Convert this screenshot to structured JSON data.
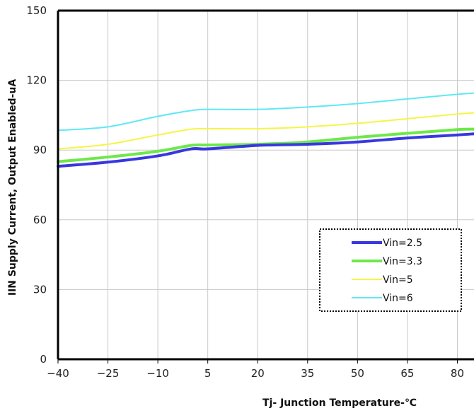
{
  "chart_data": {
    "type": "line",
    "title": "",
    "xlabel": "Tj- Junction Temperature-℃",
    "ylabel": "IIN Supply Current, Output Enabled-uA",
    "xlim": [
      -40,
      85
    ],
    "ylim": [
      0,
      150
    ],
    "x_ticks": [
      -40,
      -25,
      -10,
      5,
      20,
      35,
      50,
      65,
      80
    ],
    "y_ticks": [
      0,
      30,
      60,
      90,
      120,
      150
    ],
    "grid": true,
    "legend_position": "lower-right",
    "series": [
      {
        "name": "Vin=2.5",
        "color": "#3838e0",
        "x": [
          -40,
          -25,
          -10,
          0,
          5,
          20,
          35,
          50,
          65,
          80,
          85
        ],
        "values": [
          83,
          84.8,
          87.5,
          90.5,
          90.5,
          92,
          92.5,
          93.5,
          95.2,
          96.5,
          97
        ]
      },
      {
        "name": "Vin=3.3",
        "color": "#6ee84a",
        "x": [
          -40,
          -25,
          -10,
          0,
          5,
          20,
          35,
          50,
          65,
          80,
          85
        ],
        "values": [
          85,
          87,
          89.5,
          92,
          92.2,
          92.5,
          93.5,
          95.5,
          97.2,
          98.8,
          99
        ]
      },
      {
        "name": "Vin=5",
        "color": "#f5f545",
        "x": [
          -40,
          -25,
          -10,
          0,
          5,
          20,
          35,
          50,
          65,
          80,
          85
        ],
        "values": [
          90.5,
          92.5,
          96.5,
          99,
          99.2,
          99.2,
          100,
          101.5,
          103.5,
          105.5,
          106
        ]
      },
      {
        "name": "Vin=6",
        "color": "#5fe8f5",
        "x": [
          -40,
          -25,
          -10,
          0,
          5,
          20,
          35,
          50,
          65,
          80,
          85
        ],
        "values": [
          98.5,
          100,
          104.5,
          107,
          107.5,
          107.5,
          108.5,
          110,
          112,
          114,
          114.5
        ]
      }
    ]
  }
}
